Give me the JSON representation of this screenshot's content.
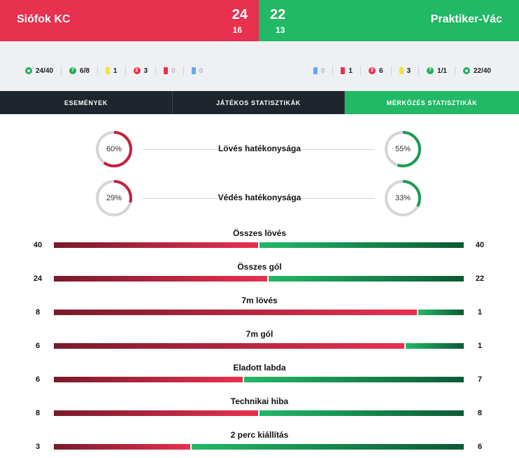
{
  "match": {
    "home": {
      "name": "Siófok KC",
      "score": "24",
      "half_score": "16"
    },
    "away": {
      "name": "Praktiker-Vác",
      "score": "22",
      "half_score": "13"
    }
  },
  "summary": {
    "home": [
      {
        "icon": "ball-icon",
        "value": "24/40"
      },
      {
        "icon": "seven-meter-goal-icon",
        "value": "6/8"
      },
      {
        "icon": "yellow-card-icon",
        "value": "1"
      },
      {
        "icon": "two-minute-icon",
        "value": "3"
      },
      {
        "icon": "red-card-icon",
        "value": "0"
      },
      {
        "icon": "blue-card-icon",
        "value": "0"
      }
    ],
    "away": [
      {
        "icon": "blue-card-icon",
        "value": "0"
      },
      {
        "icon": "red-card-icon",
        "value": "1"
      },
      {
        "icon": "two-minute-icon",
        "value": "6"
      },
      {
        "icon": "yellow-card-icon",
        "value": "3"
      },
      {
        "icon": "seven-meter-goal-icon",
        "value": "1/1"
      },
      {
        "icon": "ball-icon",
        "value": "22/40"
      }
    ]
  },
  "tabs": [
    {
      "label": "Események",
      "active": false
    },
    {
      "label": "Játékos statisztikák",
      "active": false
    },
    {
      "label": "Mérkőzés statisztikák",
      "active": true
    }
  ],
  "rings": [
    {
      "label": "Lövés hatékonysága",
      "home_pct": 60,
      "home_text": "60%",
      "away_pct": 55,
      "away_text": "55%"
    },
    {
      "label": "Védés hatékonysága",
      "home_pct": 29,
      "home_text": "29%",
      "away_pct": 33,
      "away_text": "33%"
    }
  ],
  "stats": [
    {
      "label": "Összes lövés",
      "home": "40",
      "away": "40"
    },
    {
      "label": "Összes gól",
      "home": "24",
      "away": "22"
    },
    {
      "label": "7m lövés",
      "home": "8",
      "away": "1"
    },
    {
      "label": "7m gól",
      "home": "6",
      "away": "1"
    },
    {
      "label": "Eladott labda",
      "home": "6",
      "away": "7"
    },
    {
      "label": "Technikai hiba",
      "home": "8",
      "away": "8"
    },
    {
      "label": "2 perc kiállítás",
      "home": "3",
      "away": "6"
    }
  ],
  "colors": {
    "home": "#e8304f",
    "home_dark": "#7a1a2c",
    "away": "#21b866",
    "away_dark": "#0c5a35",
    "ring_track": "#d4d6d9"
  }
}
